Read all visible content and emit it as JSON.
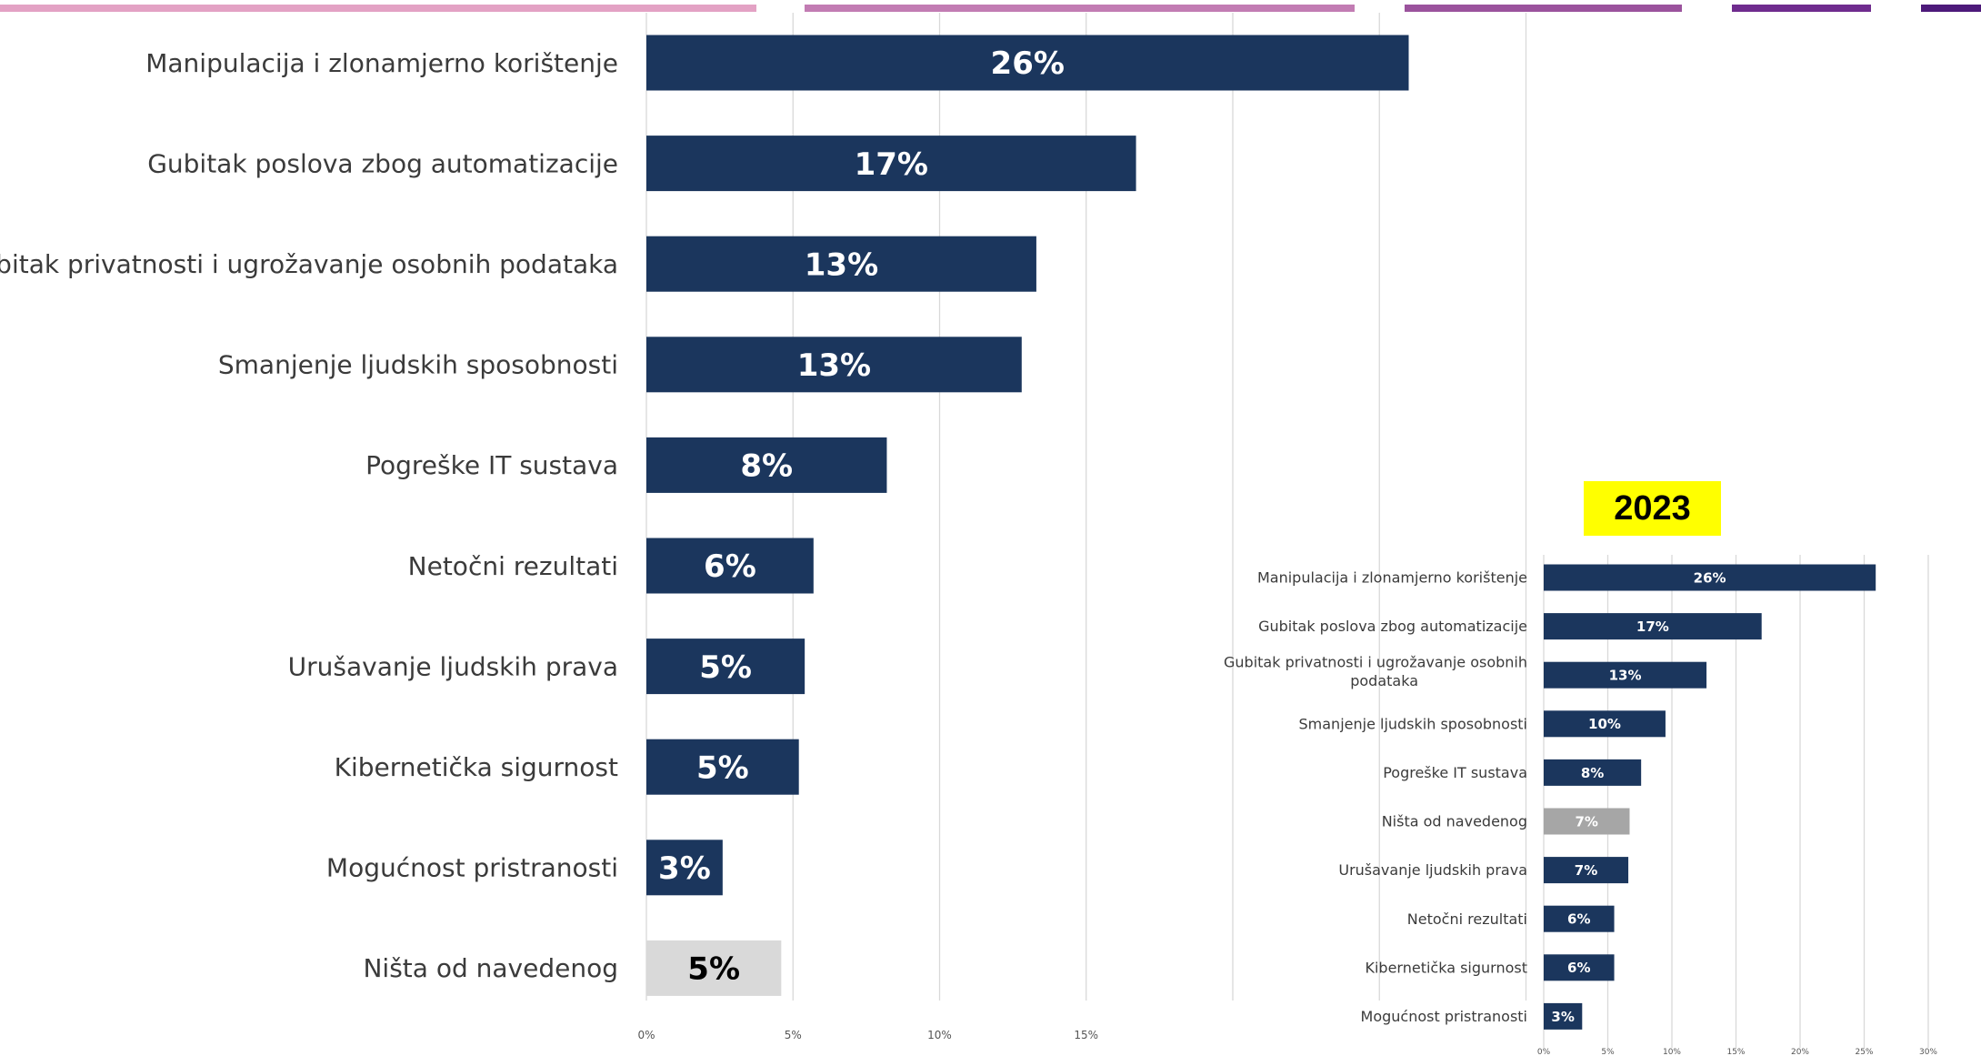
{
  "colors": {
    "bar": "#1b365d",
    "bar_none_main": "#d9d9d9",
    "bar_none_inset": "#a6a6a6",
    "grid": "#d9d9d9",
    "label_light": "#ffffff",
    "label_dark": "#000000",
    "badge": "#ffff00"
  },
  "decor_palette": [
    "#e3a2c4",
    "#c27cb3",
    "#9b539d",
    "#6f2c8e",
    "#4d1a7a"
  ],
  "chart_data": [
    {
      "type": "bar",
      "orientation": "horizontal",
      "categories": [
        "Manipulacija i zlonamjerno korištenje",
        "Gubitak poslova zbog automatizacije",
        "Gubitak privatnosti i ugrožavanje osobnih podataka",
        "Smanjenje ljudskih sposobnosti",
        "Pogreške IT sustava",
        "Netočni rezultati",
        "Urušavanje ljudskih prava",
        "Kibernetička sigurnost",
        "Mogućnost pristranosti",
        "Ništa od navedenog"
      ],
      "values": [
        26,
        17,
        13,
        13,
        8,
        6,
        5,
        5,
        3,
        5
      ],
      "exact_values": [
        26.0,
        16.7,
        13.3,
        12.8,
        8.2,
        5.7,
        5.4,
        5.2,
        2.6,
        4.6
      ],
      "labels": [
        "26%",
        "17%",
        "13%",
        "13%",
        "8%",
        "6%",
        "5%",
        "5%",
        "3%",
        "5%"
      ],
      "highlight_category": "Ništa od navedenog",
      "ticks": [
        "0%",
        "5%",
        "10%",
        "15%"
      ],
      "xlim": [
        0,
        30
      ],
      "grid": "vertical",
      "legend": "none"
    },
    {
      "type": "bar",
      "orientation": "horizontal",
      "title": "2023",
      "categories": [
        "Manipulacija i zlonamjerno korištenje",
        "Gubitak poslova zbog automatizacije",
        "Gubitak privatnosti i ugrožavanje osobnih podataka",
        "Smanjenje ljudskih sposobnosti",
        "Pogreške IT sustava",
        "Ništa od navedenog",
        "Urušavanje ljudskih prava",
        "Netočni rezultati",
        "Kibernetička sigurnost",
        "Mogućnost pristranosti"
      ],
      "values": [
        26,
        17,
        13,
        10,
        8,
        7,
        7,
        6,
        6,
        3
      ],
      "exact_values": [
        25.9,
        17.0,
        12.7,
        9.5,
        7.6,
        6.7,
        6.6,
        5.5,
        5.5,
        3.0
      ],
      "labels": [
        "26%",
        "17%",
        "13%",
        "10%",
        "8%",
        "7%",
        "7%",
        "6%",
        "6%",
        "3%"
      ],
      "highlight_category": "Ništa od navedenog",
      "ticks": [
        "0%",
        "5%",
        "10%",
        "15%",
        "20%",
        "25%",
        "30%"
      ],
      "xlim": [
        0,
        30
      ],
      "grid": "vertical",
      "legend": "none"
    }
  ]
}
